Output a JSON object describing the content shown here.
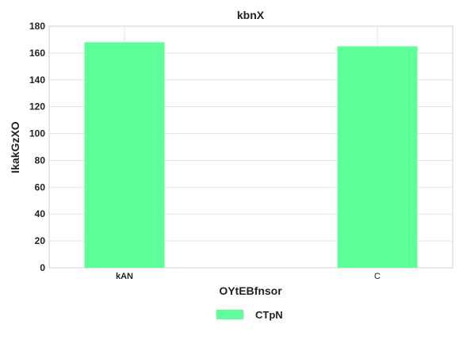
{
  "chart_data": {
    "type": "bar",
    "title": "kbnX",
    "xlabel": "OYtEBfnsor",
    "ylabel": "IkakGzXO",
    "categories": [
      "kAN",
      "C"
    ],
    "series": [
      {
        "name": "CTpN",
        "values": [
          168,
          165
        ],
        "color": "#5cff98"
      }
    ],
    "ylim": [
      0,
      180
    ],
    "yticks": [
      0,
      20,
      40,
      60,
      80,
      100,
      120,
      140,
      160,
      180
    ],
    "grid": true,
    "legend_position": "bottom-center"
  }
}
